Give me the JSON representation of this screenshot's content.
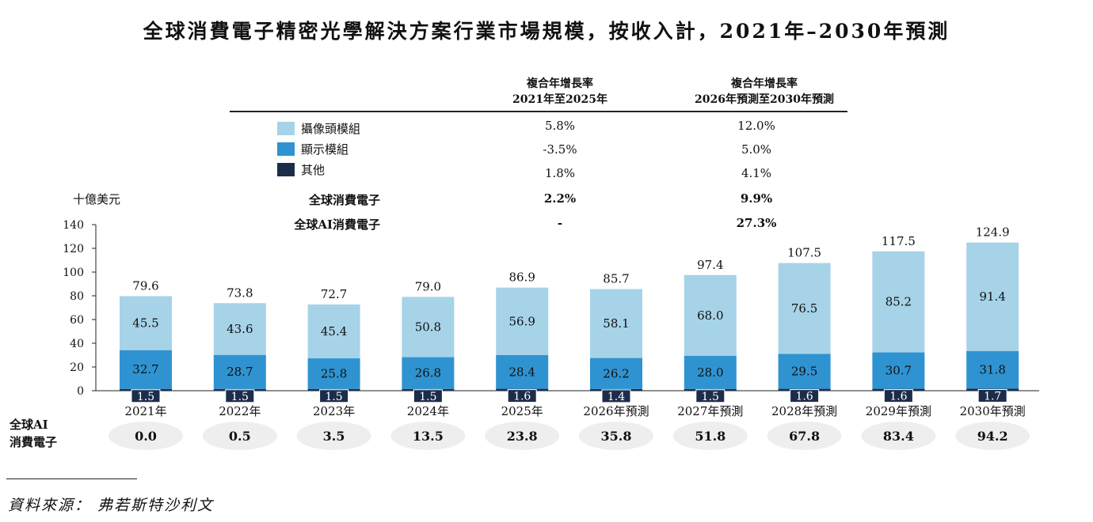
{
  "title": "全球消費電子精密光學解決方案行業市場規模，按收入計，2021年–2030年預測",
  "cagr_table": {
    "col1": {
      "line1": "複合年增長率",
      "line2": "2021年至2025年"
    },
    "col2": {
      "line1": "複合年增長率",
      "line2": "2026年預測至2030年預測"
    },
    "rows": [
      {
        "name": "攝像頭模組",
        "color": "#a6d3e8",
        "v1": "5.8%",
        "v2": "12.0%"
      },
      {
        "name": "顯示模組",
        "color": "#2f93d1",
        "v1": "-3.5%",
        "v2": "5.0%"
      },
      {
        "name": "其他",
        "color": "#1c2d4b",
        "v1": "1.8%",
        "v2": "4.1%"
      }
    ],
    "totals": [
      {
        "name": "全球消費電子",
        "v1": "2.2%",
        "v2": "9.9%"
      },
      {
        "name": "全球AI消費電子",
        "v1": "-",
        "v2": "27.3%"
      }
    ]
  },
  "chart_data": {
    "type": "bar",
    "stacked": true,
    "unit": "十億美元",
    "ylim": [
      0,
      140
    ],
    "yticks": [
      0,
      20,
      40,
      60,
      80,
      100,
      120,
      140
    ],
    "categories": [
      "2021年",
      "2022年",
      "2023年",
      "2024年",
      "2025年",
      "2026年預測",
      "2027年預測",
      "2028年預測",
      "2029年預測",
      "2030年預測"
    ],
    "series": [
      {
        "name": "其他",
        "color": "#1c2d4b",
        "values": [
          1.5,
          1.5,
          1.5,
          1.5,
          1.6,
          1.4,
          1.5,
          1.6,
          1.6,
          1.7
        ]
      },
      {
        "name": "顯示模組",
        "color": "#2f93d1",
        "values": [
          32.7,
          28.7,
          25.8,
          26.8,
          28.4,
          26.2,
          28.0,
          29.5,
          30.7,
          31.8
        ]
      },
      {
        "name": "攝像頭模組",
        "color": "#a6d3e8",
        "values": [
          45.5,
          43.6,
          45.4,
          50.8,
          56.9,
          58.1,
          68.0,
          76.5,
          85.2,
          91.4
        ]
      }
    ],
    "totals": [
      "79.6",
      "73.8",
      "72.7",
      "79.0",
      "86.9",
      "85.7",
      "97.4",
      "107.5",
      "117.5",
      "124.9"
    ],
    "ai_row": {
      "label_line1": "全球AI",
      "label_line2": "消費電子",
      "values": [
        "0.0",
        "0.5",
        "3.5",
        "13.5",
        "23.8",
        "35.8",
        "51.8",
        "67.8",
        "83.4",
        "94.2"
      ]
    }
  },
  "source": "資料來源： 弗若斯特沙利文"
}
